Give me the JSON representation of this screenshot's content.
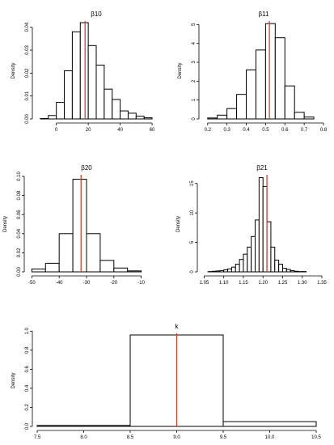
{
  "chart_data": [
    {
      "type": "bar",
      "title": "β10",
      "ylabel": "Density",
      "bin_edges": [
        -10,
        -5,
        0,
        5,
        10,
        15,
        20,
        25,
        30,
        35,
        40,
        45,
        50,
        55,
        60
      ],
      "values": [
        0.0002,
        0.0015,
        0.0072,
        0.021,
        0.038,
        0.042,
        0.032,
        0.0235,
        0.013,
        0.0085,
        0.0035,
        0.0025,
        0.0012,
        0.0005
      ],
      "reference_line": 18,
      "xlim": [
        -12,
        62
      ],
      "ylim": [
        0,
        0.042
      ],
      "xticks": [
        0,
        20,
        40,
        60
      ],
      "yticks": [
        0.0,
        0.01,
        0.02,
        0.03,
        0.04
      ],
      "ytick_labels": [
        "0.00",
        "0.01",
        "0.02",
        "0.03",
        "0.04"
      ]
    },
    {
      "type": "bar",
      "title": "β11",
      "ylabel": "Density",
      "bin_edges": [
        0.2,
        0.25,
        0.3,
        0.35,
        0.4,
        0.45,
        0.5,
        0.55,
        0.6,
        0.65,
        0.7,
        0.75
      ],
      "values": [
        0.05,
        0.2,
        0.55,
        1.3,
        2.6,
        3.65,
        5.05,
        4.3,
        1.75,
        0.35,
        0.1
      ],
      "reference_line": 0.52,
      "xlim": [
        0.18,
        0.8
      ],
      "ylim": [
        0,
        5.1
      ],
      "xticks": [
        0.2,
        0.3,
        0.4,
        0.5,
        0.6,
        0.7,
        0.8
      ],
      "yticks": [
        0,
        1,
        2,
        3,
        4,
        5
      ],
      "ytick_labels": [
        "0",
        "1",
        "2",
        "3",
        "4",
        "5"
      ]
    },
    {
      "type": "bar",
      "title": "β20",
      "ylabel": "Density",
      "bin_edges": [
        -50,
        -45,
        -40,
        -35,
        -30,
        -25,
        -20,
        -15,
        -10
      ],
      "values": [
        0.003,
        0.009,
        0.04,
        0.097,
        0.04,
        0.012,
        0.004,
        0.001
      ],
      "reference_line": -32,
      "xlim": [
        -51,
        -9
      ],
      "ylim": [
        0,
        0.1
      ],
      "xticks": [
        -50,
        -40,
        -30,
        -20,
        -10
      ],
      "yticks": [
        0.0,
        0.02,
        0.04,
        0.06,
        0.08,
        0.1
      ],
      "ytick_labels": [
        "0.00",
        "0.02",
        "0.04",
        "0.06",
        "0.08",
        "0.10"
      ]
    },
    {
      "type": "bar",
      "title": "β21",
      "ylabel": "Density",
      "bin_edges": [
        1.06,
        1.07,
        1.08,
        1.09,
        1.1,
        1.11,
        1.12,
        1.13,
        1.14,
        1.15,
        1.16,
        1.17,
        1.18,
        1.19,
        1.2,
        1.21,
        1.22,
        1.23,
        1.24,
        1.25,
        1.26,
        1.27,
        1.28,
        1.29,
        1.3,
        1.31
      ],
      "values": [
        0.05,
        0.1,
        0.15,
        0.2,
        0.35,
        0.5,
        0.8,
        1.3,
        2.1,
        3.0,
        4.2,
        6.0,
        8.8,
        16,
        14.5,
        8.5,
        4.2,
        2.0,
        1.3,
        0.6,
        0.4,
        0.2,
        0.1,
        0.05,
        0.05
      ],
      "reference_line": 1.21,
      "xlim": [
        1.045,
        1.35
      ],
      "ylim": [
        0,
        16.2
      ],
      "xticks": [
        1.05,
        1.1,
        1.15,
        1.2,
        1.25,
        1.3,
        1.35
      ],
      "yticks": [
        0,
        5,
        10,
        15
      ],
      "ytick_labels": [
        "0",
        "5",
        "10",
        "15"
      ]
    },
    {
      "type": "bar",
      "title": "k",
      "ylabel": "Density",
      "bin_edges": [
        7.5,
        8.5,
        9.5,
        10.5
      ],
      "values": [
        0.01,
        0.96,
        0.05
      ],
      "reference_line": 9.0,
      "xlim": [
        7.5,
        10.5
      ],
      "ylim": [
        0,
        0.96
      ],
      "xticks": [
        7.5,
        8.0,
        8.5,
        9.0,
        9.5,
        10.0,
        10.5
      ],
      "yticks": [
        0.0,
        0.2,
        0.4,
        0.6,
        0.8,
        1.0
      ],
      "ytick_labels": [
        "0.0",
        "0.2",
        "0.4",
        "0.6",
        "0.8",
        "1.0"
      ]
    }
  ]
}
